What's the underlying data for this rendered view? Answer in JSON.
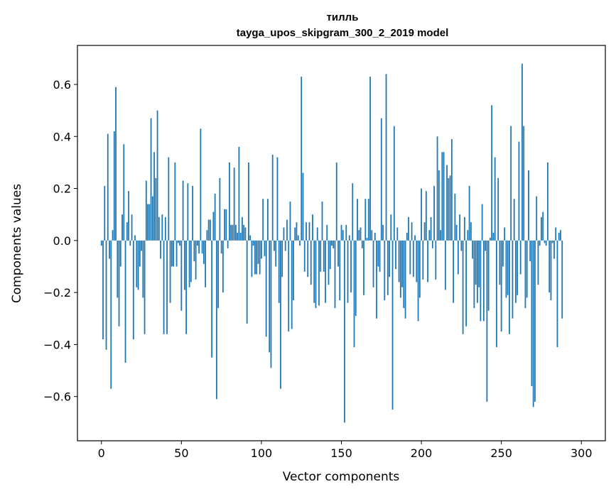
{
  "chart_data": {
    "type": "bar",
    "title": "тилль",
    "subtitle": "tayga_upos_skipgram_300_2_2019 model",
    "xlabel": "Vector components",
    "ylabel": "Components values",
    "xlim": [
      -15,
      315
    ],
    "ylim": [
      -0.77,
      0.75
    ],
    "xticks": [
      0,
      50,
      100,
      150,
      200,
      250,
      300
    ],
    "yticks": [
      -0.6,
      -0.4,
      -0.2,
      0.0,
      0.2,
      0.4,
      0.6
    ],
    "ytick_labels": [
      "−0.6",
      "−0.4",
      "−0.2",
      "0.0",
      "0.2",
      "0.4",
      "0.6"
    ],
    "color": "#1f77b4",
    "values": [
      -0.02,
      -0.38,
      0.21,
      -0.42,
      0.41,
      -0.07,
      -0.57,
      0.04,
      0.42,
      0.59,
      -0.22,
      -0.33,
      -0.1,
      0.1,
      0.37,
      -0.47,
      0.07,
      0.19,
      -0.02,
      0.1,
      -0.38,
      0.02,
      -0.18,
      -0.19,
      -0.1,
      -0.04,
      -0.22,
      -0.36,
      0.23,
      0.14,
      0.14,
      0.47,
      0.17,
      0.34,
      0.24,
      0.5,
      0.09,
      -0.07,
      0.1,
      -0.36,
      0.09,
      -0.36,
      0.32,
      -0.24,
      -0.1,
      -0.1,
      0.3,
      -0.1,
      -0.01,
      -0.02,
      -0.27,
      0.23,
      -0.19,
      -0.36,
      0.22,
      -0.18,
      -0.16,
      0.21,
      -0.08,
      -0.15,
      -0.02,
      -0.05,
      0.43,
      -0.05,
      -0.09,
      -0.18,
      0.04,
      0.08,
      0.08,
      -0.45,
      0.11,
      0.18,
      -0.61,
      -0.26,
      0.24,
      -0.05,
      -0.2,
      0.12,
      0.12,
      -0.03,
      0.3,
      0.06,
      0.06,
      0.28,
      0.06,
      0.03,
      0.36,
      0.03,
      0.09,
      0.06,
      0.05,
      -0.32,
      0.3,
      0.02,
      -0.14,
      -0.02,
      -0.13,
      -0.13,
      -0.09,
      -0.13,
      -0.07,
      0.16,
      -0.06,
      -0.37,
      0.16,
      -0.43,
      -0.49,
      0.33,
      -0.04,
      -0.1,
      0.32,
      -0.24,
      -0.57,
      -0.14,
      0.05,
      -0.04,
      0.08,
      -0.35,
      0.15,
      -0.34,
      -0.23,
      0.05,
      0.07,
      0.02,
      -0.02,
      0.63,
      0.26,
      -0.12,
      0.07,
      -0.14,
      0.07,
      -0.17,
      0.1,
      -0.24,
      -0.26,
      0.05,
      -0.25,
      -0.12,
      0.15,
      -0.12,
      -0.24,
      0.06,
      -0.17,
      -0.11,
      -0.02,
      -0.03,
      -0.26,
      0.3,
      -0.1,
      -0.23,
      0.06,
      0.04,
      -0.7,
      0.06,
      -0.24,
      0.02,
      -0.2,
      0.22,
      -0.41,
      -0.29,
      0.16,
      0.04,
      0.05,
      -0.03,
      -0.21,
      0.16,
      0.01,
      0.16,
      0.63,
      0.04,
      -0.18,
      0.03,
      -0.3,
      -0.1,
      -0.12,
      0.47,
      0.06,
      -0.23,
      0.64,
      -0.21,
      -0.14,
      0.1,
      -0.65,
      0.44,
      -0.11,
      0.05,
      -0.16,
      -0.22,
      -0.18,
      -0.26,
      -0.3,
      0.03,
      0.09,
      -0.13,
      0.07,
      -0.14,
      0.02,
      -0.16,
      -0.31,
      -0.22,
      0.2,
      -0.15,
      0.07,
      0.19,
      -0.16,
      0.04,
      0.09,
      -0.03,
      0.21,
      -0.15,
      0.4,
      0.27,
      0.04,
      0.34,
      0.34,
      -0.19,
      0.29,
      0.24,
      0.25,
      0.39,
      -0.24,
      0.18,
      0.06,
      -0.13,
      0.1,
      -0.04,
      -0.36,
      0.09,
      -0.33,
      0.04,
      0.21,
      0.07,
      -0.07,
      -0.26,
      -0.17,
      -0.24,
      -0.18,
      -0.31,
      0.14,
      -0.31,
      -0.04,
      -0.62,
      -0.27,
      0.01,
      0.52,
      0.03,
      0.32,
      -0.41,
      0.24,
      -0.17,
      -0.35,
      -0.1,
      0.05,
      -0.22,
      -0.21,
      -0.36,
      0.44,
      -0.3,
      0.16,
      -0.24,
      -0.21,
      0.38,
      -0.13,
      0.68,
      0.44,
      -0.26,
      -0.22,
      0.27,
      -0.08,
      -0.56,
      -0.64,
      -0.62,
      0.17,
      -0.17,
      -0.02,
      0.09,
      0.11,
      -0.01,
      -0.02,
      0.3,
      -0.2,
      -0.23,
      -0.01,
      -0.07,
      0.05,
      -0.41,
      0.03,
      0.04,
      -0.3
    ]
  }
}
